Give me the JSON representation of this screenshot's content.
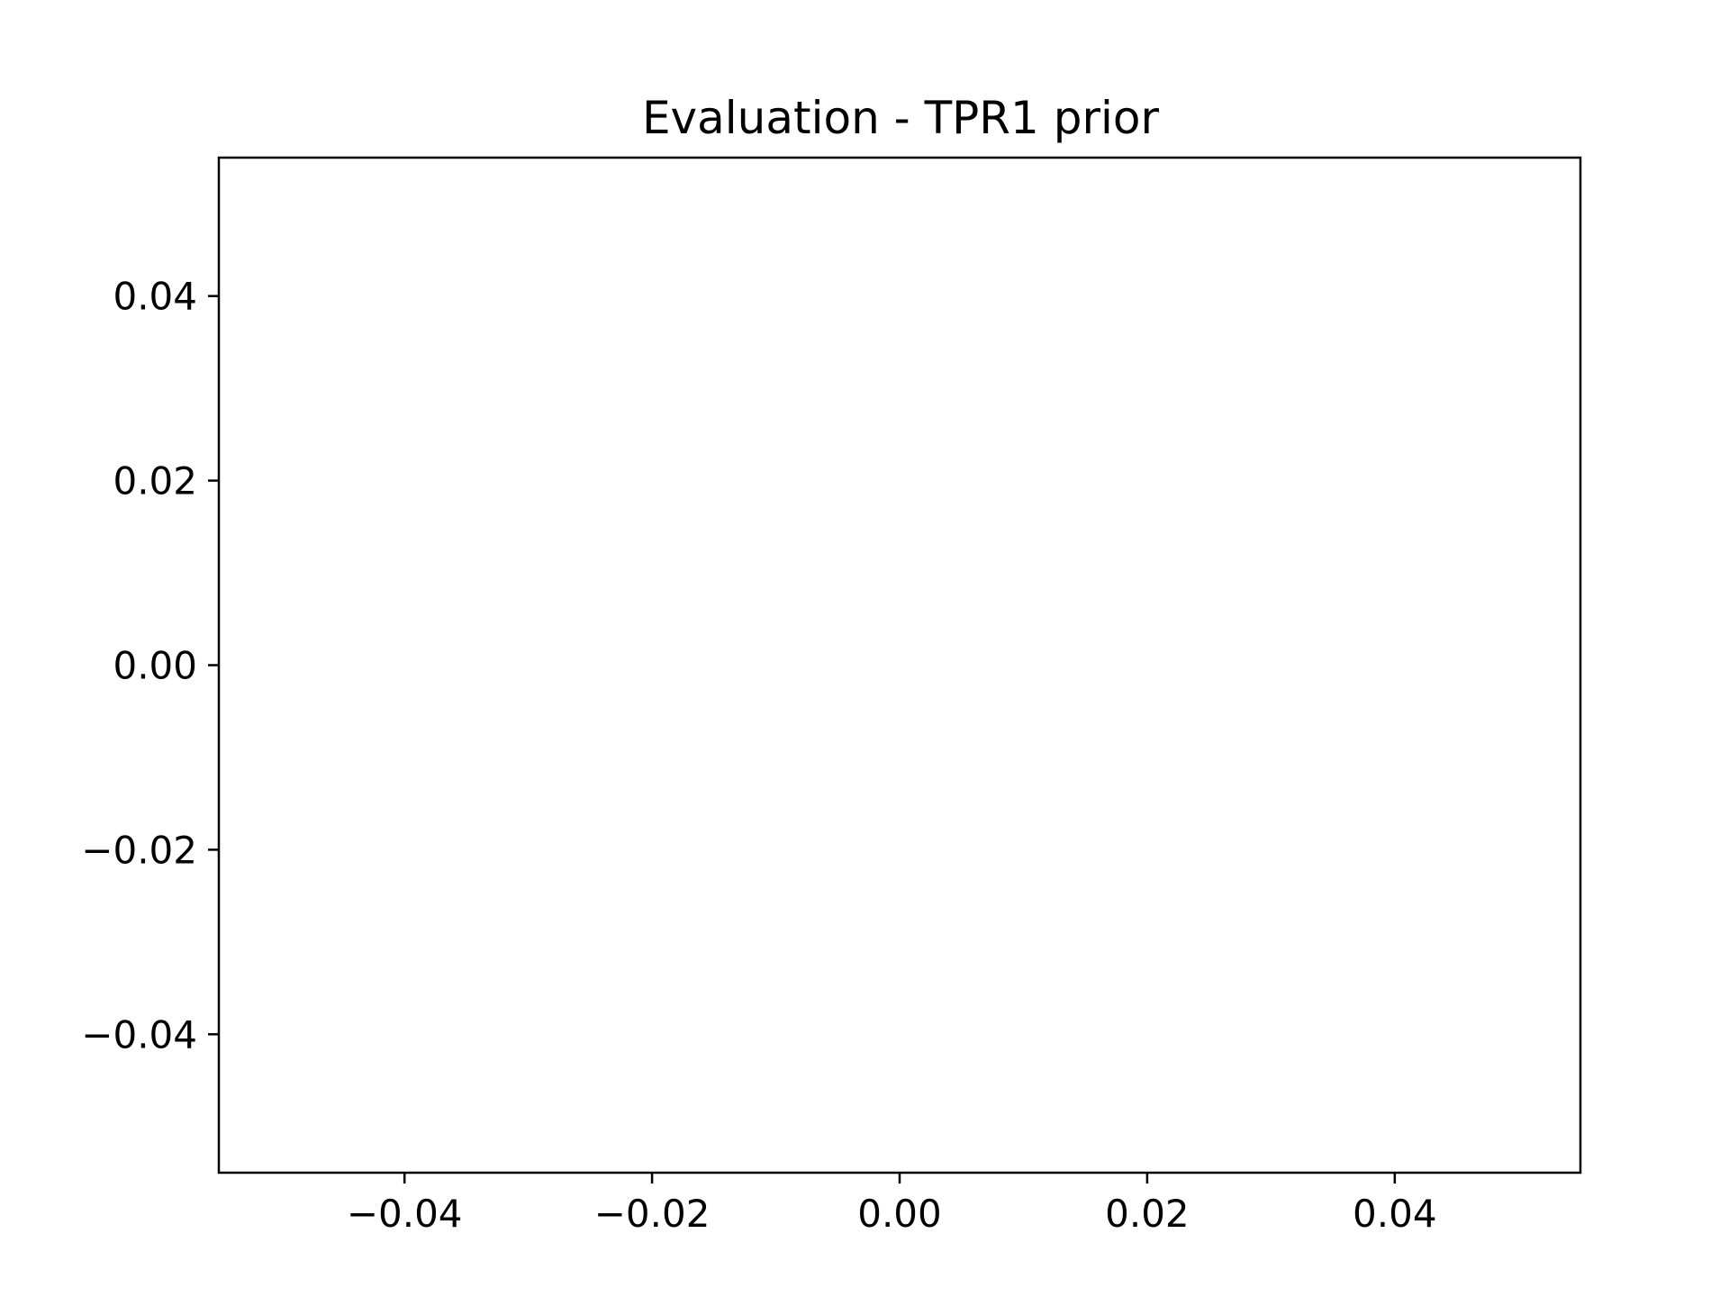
{
  "chart_data": {
    "type": "scatter",
    "title": "Evaluation - TPR1 prior",
    "xlabel": "",
    "ylabel": "",
    "xlim": [
      -0.055,
      0.055
    ],
    "ylim": [
      -0.055,
      0.055
    ],
    "xticks": [
      {
        "value": -0.04,
        "label": "−0.04"
      },
      {
        "value": -0.02,
        "label": "−0.02"
      },
      {
        "value": 0.0,
        "label": "0.00"
      },
      {
        "value": 0.02,
        "label": "0.02"
      },
      {
        "value": 0.04,
        "label": "0.04"
      }
    ],
    "yticks": [
      {
        "value": 0.04,
        "label": "0.04"
      },
      {
        "value": 0.02,
        "label": "0.02"
      },
      {
        "value": 0.0,
        "label": "0.00"
      },
      {
        "value": -0.02,
        "label": "−0.02"
      },
      {
        "value": -0.04,
        "label": "−0.04"
      }
    ],
    "series": [],
    "grid": false,
    "legend": "none"
  }
}
